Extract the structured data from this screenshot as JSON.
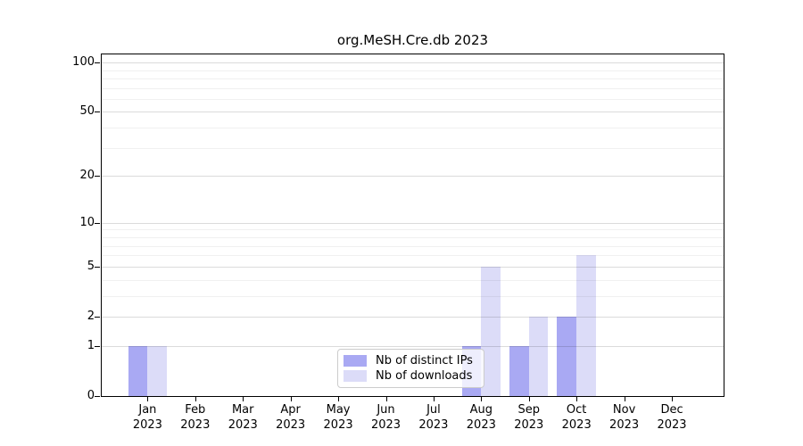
{
  "chart_data": {
    "type": "bar",
    "title": "org.MeSH.Cre.db 2023",
    "categories": [
      "Jan",
      "Feb",
      "Mar",
      "Apr",
      "May",
      "Jun",
      "Jul",
      "Aug",
      "Sep",
      "Oct",
      "Nov",
      "Dec"
    ],
    "x_year_label": "2023",
    "series": [
      {
        "name": "Nb of distinct IPs",
        "color": "#a9a9f3",
        "values": [
          1,
          0,
          0,
          0,
          0,
          0,
          0,
          1,
          1,
          2,
          0,
          0
        ]
      },
      {
        "name": "Nb of downloads",
        "color": "#dcdcf8",
        "values": [
          1,
          0,
          0,
          0,
          0,
          0,
          0,
          5,
          2,
          6,
          0,
          0
        ]
      }
    ],
    "yscale": "log1p",
    "ylim": [
      0,
      112
    ],
    "y_major_ticks": [
      0,
      1,
      2,
      5,
      10,
      20,
      50,
      100
    ],
    "y_minor_gridlines": [
      3,
      4,
      6,
      7,
      8,
      9,
      30,
      40,
      60,
      70,
      80,
      90
    ],
    "grid": "horizontal",
    "legend_position": "bottom-center",
    "axis_color": "#000000",
    "major_grid_color": "rgba(0,0,0,0.14)",
    "minor_grid_color": "rgba(0,0,0,0.06)"
  }
}
